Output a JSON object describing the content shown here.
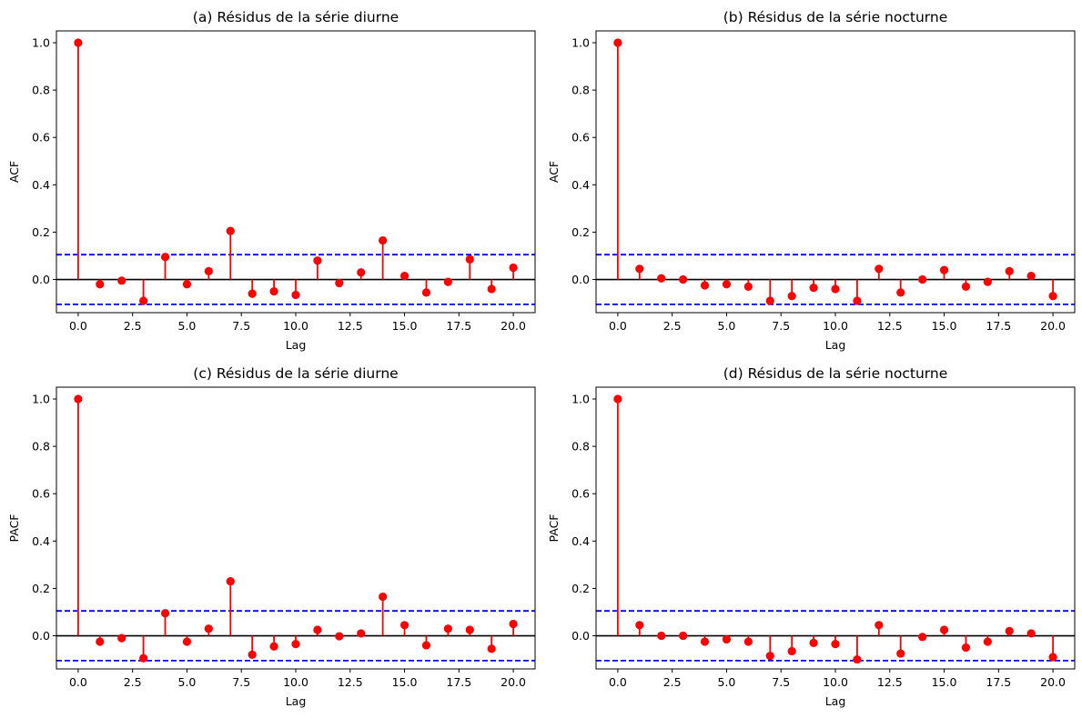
{
  "chart_data": [
    {
      "type": "stem",
      "title": "(a) Résidus de la série diurne",
      "xlabel": "Lag",
      "ylabel": "ACF",
      "xlim": [
        -1,
        21
      ],
      "ylim": [
        -0.14,
        1.05
      ],
      "xticks": [
        0.0,
        2.5,
        5.0,
        7.5,
        10.0,
        12.5,
        15.0,
        17.5,
        20.0
      ],
      "xtick_labels": [
        "0.0",
        "2.5",
        "5.0",
        "7.5",
        "10.0",
        "12.5",
        "15.0",
        "17.5",
        "20.0"
      ],
      "yticks": [
        0.0,
        0.2,
        0.4,
        0.6,
        0.8,
        1.0
      ],
      "ytick_labels": [
        "0.0",
        "0.2",
        "0.4",
        "0.6",
        "0.8",
        "1.0"
      ],
      "x": [
        0,
        1,
        2,
        3,
        4,
        5,
        6,
        7,
        8,
        9,
        10,
        11,
        12,
        13,
        14,
        15,
        16,
        17,
        18,
        19,
        20
      ],
      "values": [
        1.0,
        -0.02,
        -0.005,
        -0.09,
        0.095,
        -0.02,
        0.035,
        0.205,
        -0.06,
        -0.05,
        -0.065,
        0.08,
        -0.015,
        0.03,
        0.165,
        0.015,
        -0.055,
        -0.01,
        0.085,
        -0.04,
        0.05
      ],
      "confidence": 0.105
    },
    {
      "type": "stem",
      "title": "(b) Résidus de la série nocturne",
      "xlabel": "Lag",
      "ylabel": "ACF",
      "xlim": [
        -1,
        21
      ],
      "ylim": [
        -0.14,
        1.05
      ],
      "xticks": [
        0.0,
        2.5,
        5.0,
        7.5,
        10.0,
        12.5,
        15.0,
        17.5,
        20.0
      ],
      "xtick_labels": [
        "0.0",
        "2.5",
        "5.0",
        "7.5",
        "10.0",
        "12.5",
        "15.0",
        "17.5",
        "20.0"
      ],
      "yticks": [
        0.0,
        0.2,
        0.4,
        0.6,
        0.8,
        1.0
      ],
      "ytick_labels": [
        "0.0",
        "0.2",
        "0.4",
        "0.6",
        "0.8",
        "1.0"
      ],
      "x": [
        0,
        1,
        2,
        3,
        4,
        5,
        6,
        7,
        8,
        9,
        10,
        11,
        12,
        13,
        14,
        15,
        16,
        17,
        18,
        19,
        20
      ],
      "values": [
        1.0,
        0.045,
        0.005,
        0.0,
        -0.025,
        -0.02,
        -0.03,
        -0.09,
        -0.07,
        -0.035,
        -0.04,
        -0.09,
        0.045,
        -0.055,
        0.0,
        0.04,
        -0.03,
        -0.01,
        0.035,
        0.015,
        -0.07
      ],
      "confidence": 0.105
    },
    {
      "type": "stem",
      "title": "(c) Résidus de la série diurne",
      "xlabel": "Lag",
      "ylabel": "PACF",
      "xlim": [
        -1,
        21
      ],
      "ylim": [
        -0.14,
        1.05
      ],
      "xticks": [
        0.0,
        2.5,
        5.0,
        7.5,
        10.0,
        12.5,
        15.0,
        17.5,
        20.0
      ],
      "xtick_labels": [
        "0.0",
        "2.5",
        "5.0",
        "7.5",
        "10.0",
        "12.5",
        "15.0",
        "17.5",
        "20.0"
      ],
      "yticks": [
        0.0,
        0.2,
        0.4,
        0.6,
        0.8,
        1.0
      ],
      "ytick_labels": [
        "0.0",
        "0.2",
        "0.4",
        "0.6",
        "0.8",
        "1.0"
      ],
      "x": [
        0,
        1,
        2,
        3,
        4,
        5,
        6,
        7,
        8,
        9,
        10,
        11,
        12,
        13,
        14,
        15,
        16,
        17,
        18,
        19,
        20
      ],
      "values": [
        1.0,
        -0.025,
        -0.01,
        -0.095,
        0.095,
        -0.025,
        0.03,
        0.23,
        -0.08,
        -0.045,
        -0.035,
        0.025,
        -0.002,
        0.01,
        0.165,
        0.045,
        -0.04,
        0.03,
        0.025,
        -0.055,
        0.05
      ],
      "confidence": 0.105
    },
    {
      "type": "stem",
      "title": "(d) Résidus de la série nocturne",
      "xlabel": "Lag",
      "ylabel": "PACF",
      "xlim": [
        -1,
        21
      ],
      "ylim": [
        -0.14,
        1.05
      ],
      "xticks": [
        0.0,
        2.5,
        5.0,
        7.5,
        10.0,
        12.5,
        15.0,
        17.5,
        20.0
      ],
      "xtick_labels": [
        "0.0",
        "2.5",
        "5.0",
        "7.5",
        "10.0",
        "12.5",
        "15.0",
        "17.5",
        "20.0"
      ],
      "yticks": [
        0.0,
        0.2,
        0.4,
        0.6,
        0.8,
        1.0
      ],
      "ytick_labels": [
        "0.0",
        "0.2",
        "0.4",
        "0.6",
        "0.8",
        "1.0"
      ],
      "x": [
        0,
        1,
        2,
        3,
        4,
        5,
        6,
        7,
        8,
        9,
        10,
        11,
        12,
        13,
        14,
        15,
        16,
        17,
        18,
        19,
        20
      ],
      "values": [
        1.0,
        0.045,
        0.0,
        0.0,
        -0.025,
        -0.015,
        -0.025,
        -0.085,
        -0.065,
        -0.03,
        -0.035,
        -0.1,
        0.045,
        -0.075,
        -0.005,
        0.025,
        -0.05,
        -0.025,
        0.02,
        0.01,
        -0.09
      ],
      "confidence": 0.105
    }
  ],
  "colors": {
    "stem": "#ff0000",
    "marker": "#ff0000",
    "baseline": "#000000",
    "confidence": "#0000ff",
    "axes": "#000000"
  },
  "grid": false,
  "legend": "none"
}
